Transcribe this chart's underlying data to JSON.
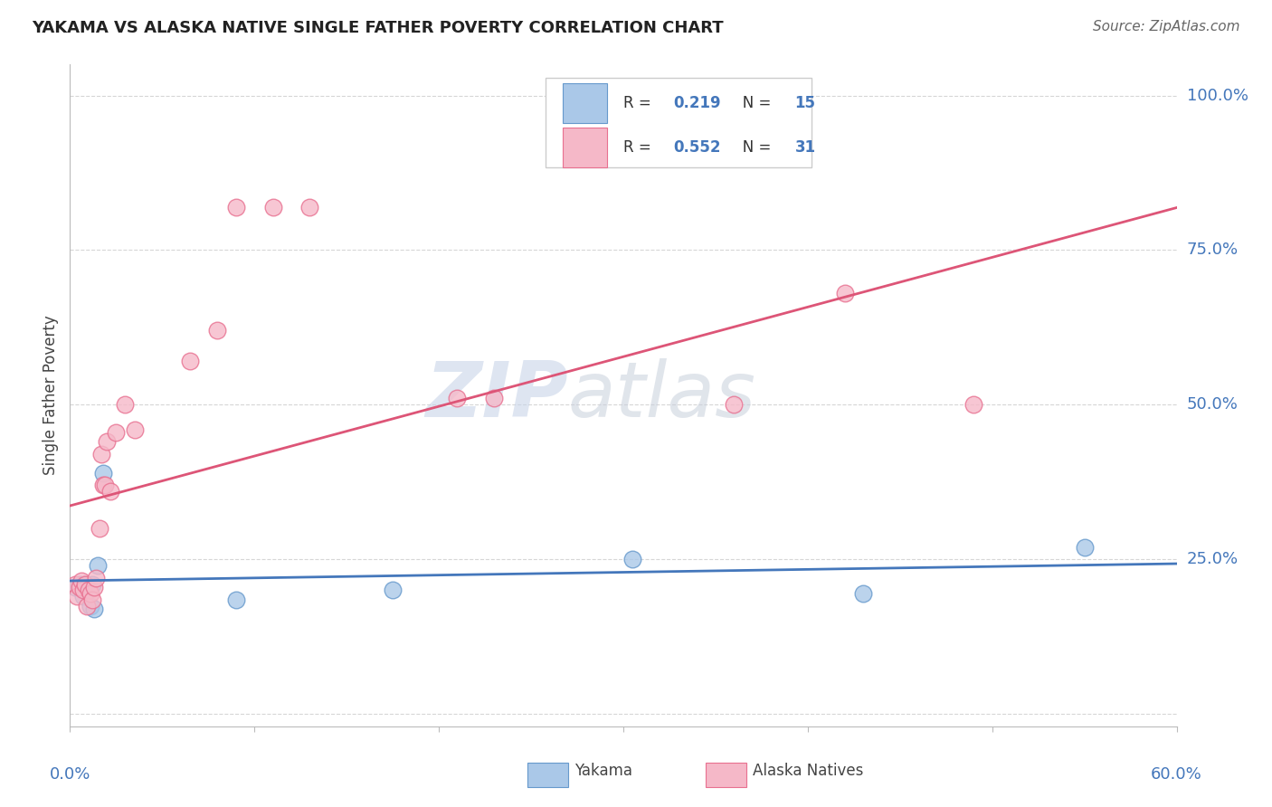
{
  "title": "YAKAMA VS ALASKA NATIVE SINGLE FATHER POVERTY CORRELATION CHART",
  "source": "Source: ZipAtlas.com",
  "ylabel": "Single Father Poverty",
  "xlim": [
    0.0,
    0.6
  ],
  "ylim": [
    -0.02,
    1.05
  ],
  "background_color": "#ffffff",
  "grid_color": "#cccccc",
  "yakama_x": [
    0.003,
    0.005,
    0.007,
    0.008,
    0.01,
    0.011,
    0.012,
    0.013,
    0.015,
    0.018,
    0.09,
    0.175,
    0.305,
    0.43,
    0.55
  ],
  "yakama_y": [
    0.205,
    0.21,
    0.19,
    0.21,
    0.205,
    0.175,
    0.21,
    0.17,
    0.24,
    0.39,
    0.185,
    0.2,
    0.25,
    0.195,
    0.27
  ],
  "alaska_x": [
    0.003,
    0.004,
    0.005,
    0.006,
    0.007,
    0.008,
    0.009,
    0.01,
    0.011,
    0.012,
    0.013,
    0.014,
    0.016,
    0.017,
    0.018,
    0.019,
    0.02,
    0.022,
    0.025,
    0.03,
    0.035,
    0.065,
    0.08,
    0.09,
    0.11,
    0.13,
    0.21,
    0.23,
    0.36,
    0.42,
    0.49
  ],
  "alaska_y": [
    0.21,
    0.19,
    0.205,
    0.215,
    0.2,
    0.21,
    0.175,
    0.2,
    0.195,
    0.185,
    0.205,
    0.22,
    0.3,
    0.42,
    0.37,
    0.37,
    0.44,
    0.36,
    0.455,
    0.5,
    0.46,
    0.57,
    0.62,
    0.82,
    0.82,
    0.82,
    0.51,
    0.51,
    0.5,
    0.68,
    0.5
  ],
  "yakama_color": "#aac8e8",
  "alaska_color": "#f5b8c8",
  "yakama_edge_color": "#6699cc",
  "alaska_edge_color": "#e87090",
  "yakama_line_color": "#4477bb",
  "alaska_line_color": "#dd5577",
  "yakama_R": "0.219",
  "yakama_N": "15",
  "alaska_R": "0.552",
  "alaska_N": "31",
  "legend_yakama_label": "Yakama",
  "legend_alaska_label": "Alaska Natives",
  "watermark_zip": "ZIP",
  "watermark_atlas": "atlas",
  "watermark_color_zip": "#c8d4e8",
  "watermark_color_atlas": "#c8d0dc"
}
